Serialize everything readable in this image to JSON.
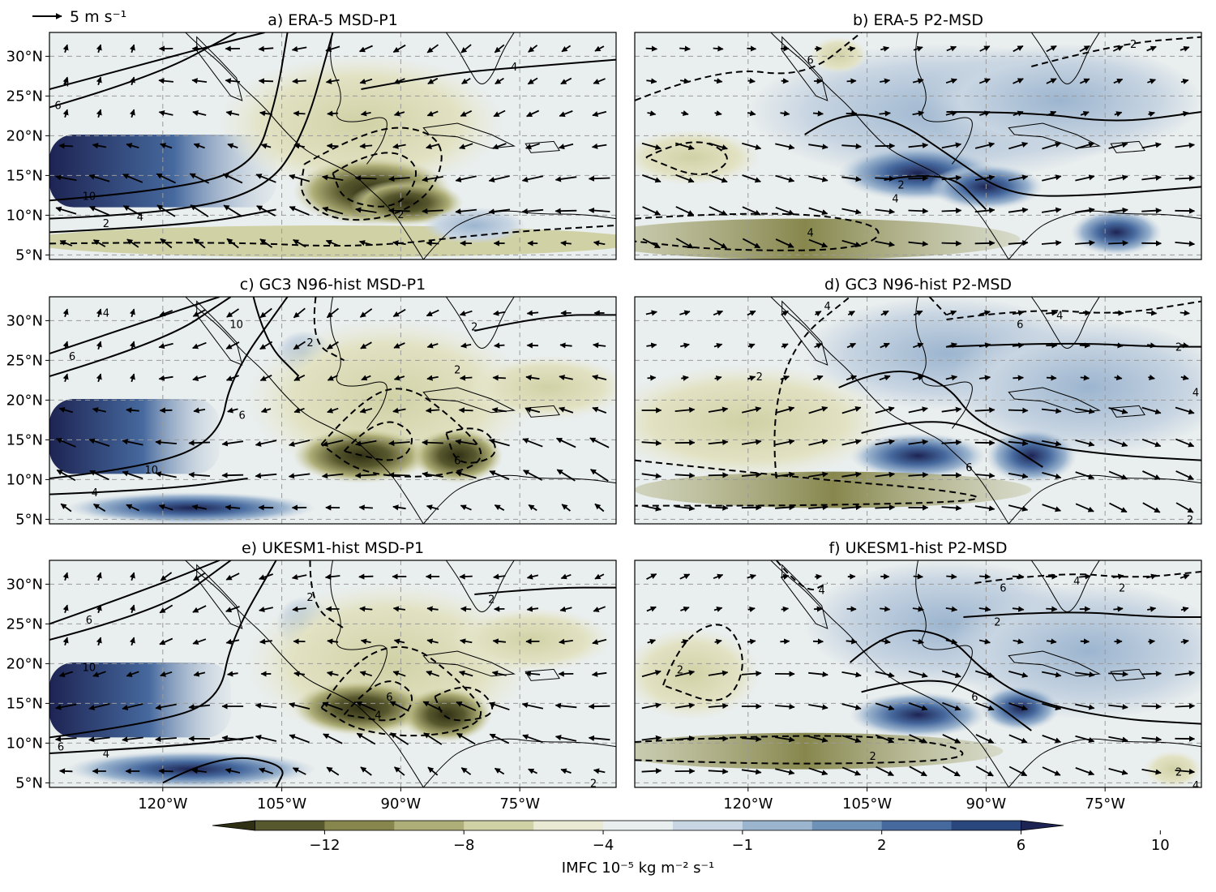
{
  "figure": {
    "wind_scale_label": "5 m s⁻¹",
    "colorbar": {
      "label": "IMFC 10⁻⁵ kg m⁻² s⁻¹",
      "ticks": [
        "−12",
        "−8",
        "−4",
        "−1",
        "2",
        "6",
        "10"
      ],
      "colors": [
        "#2f2f14",
        "#58582e",
        "#86864d",
        "#aeae78",
        "#d1d1a6",
        "#e9e9d4",
        "#e9eeee",
        "#c8d5e2",
        "#9cb5cf",
        "#6e91b7",
        "#46699e",
        "#2a477d",
        "#1d2453"
      ]
    },
    "y_ticks": [
      "30°N",
      "25°N",
      "20°N",
      "15°N",
      "10°N",
      "5°N"
    ],
    "x_ticks": [
      "120°W",
      "105°W",
      "90°W",
      "75°W"
    ],
    "panels": [
      {
        "title": "a)  ERA-5 MSD-P1",
        "labels": [
          "4",
          "6",
          "10",
          "2",
          "4",
          "2",
          "4"
        ]
      },
      {
        "title": "b)  ERA-5 P2-MSD",
        "labels": [
          "6",
          "2",
          "4",
          "2",
          "4"
        ]
      },
      {
        "title": "c)  GC3 N96-hist MSD-P1",
        "labels": [
          "4",
          "6",
          "10",
          "6",
          "2",
          "2",
          "2",
          "10",
          "4",
          "6"
        ]
      },
      {
        "title": "d)  GC3 N96-hist P2-MSD",
        "labels": [
          "4",
          "6",
          "4",
          "2",
          "2",
          "4",
          "6",
          "2"
        ]
      },
      {
        "title": "e)  UKESM1-hist MSD-P1",
        "labels": [
          "6",
          "10",
          "2",
          "2",
          "6",
          "4",
          "6",
          "4",
          "2"
        ]
      },
      {
        "title": "f)  UKESM1-hist P2-MSD",
        "labels": [
          "4",
          "6",
          "4",
          "2",
          "2",
          "2",
          "6",
          "2",
          "2",
          "4"
        ]
      }
    ]
  }
}
